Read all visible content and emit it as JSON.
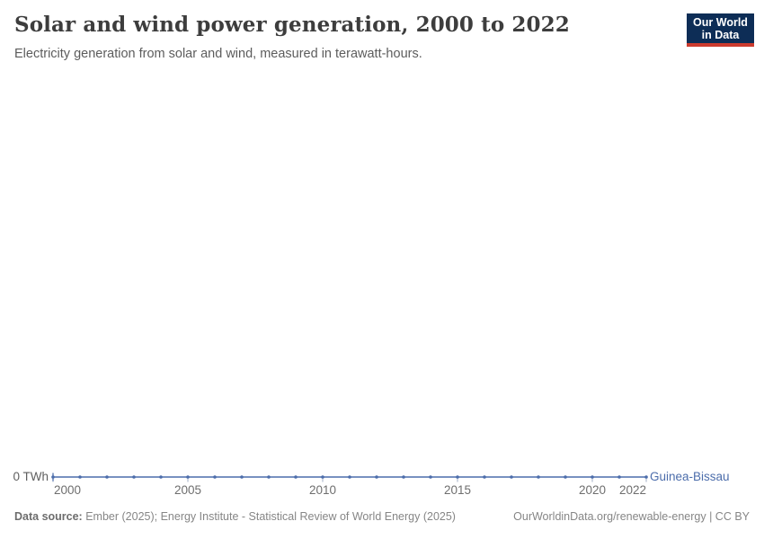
{
  "header": {
    "title": "Solar and wind power generation, 2000 to 2022",
    "subtitle": "Electricity generation from solar and wind, measured in terawatt-hours.",
    "logo": {
      "line1": "Our World",
      "line2": "in Data",
      "bg_color": "#0d2d56",
      "bar_color": "#cc3b2e"
    }
  },
  "chart_data": {
    "type": "line",
    "title": "Solar and wind power generation, 2000 to 2022",
    "xlabel": "",
    "ylabel": "TWh",
    "x": [
      2000,
      2001,
      2002,
      2003,
      2004,
      2005,
      2006,
      2007,
      2008,
      2009,
      2010,
      2011,
      2012,
      2013,
      2014,
      2015,
      2016,
      2017,
      2018,
      2019,
      2020,
      2021,
      2022
    ],
    "series": [
      {
        "name": "Guinea-Bissau",
        "color": "#4c6dab",
        "values": [
          0,
          0,
          0,
          0,
          0,
          0,
          0,
          0,
          0,
          0,
          0,
          0,
          0,
          0,
          0,
          0,
          0,
          0,
          0,
          0,
          0,
          0,
          0
        ]
      }
    ],
    "x_ticks": [
      2000,
      2005,
      2010,
      2015,
      2020,
      2022
    ],
    "y_ticks": [
      0
    ],
    "y_tick_label": "0 TWh",
    "xlim": [
      2000,
      2022
    ],
    "ylim": [
      0,
      1
    ],
    "grid": false,
    "legend_position": "end-of-line",
    "marker": "dot"
  },
  "footer": {
    "source_label": "Data source:",
    "source_text": " Ember (2025); Energy Institute - Statistical Review of World Energy (2025)",
    "link_text": "OurWorldinData.org/renewable-energy | CC BY"
  }
}
